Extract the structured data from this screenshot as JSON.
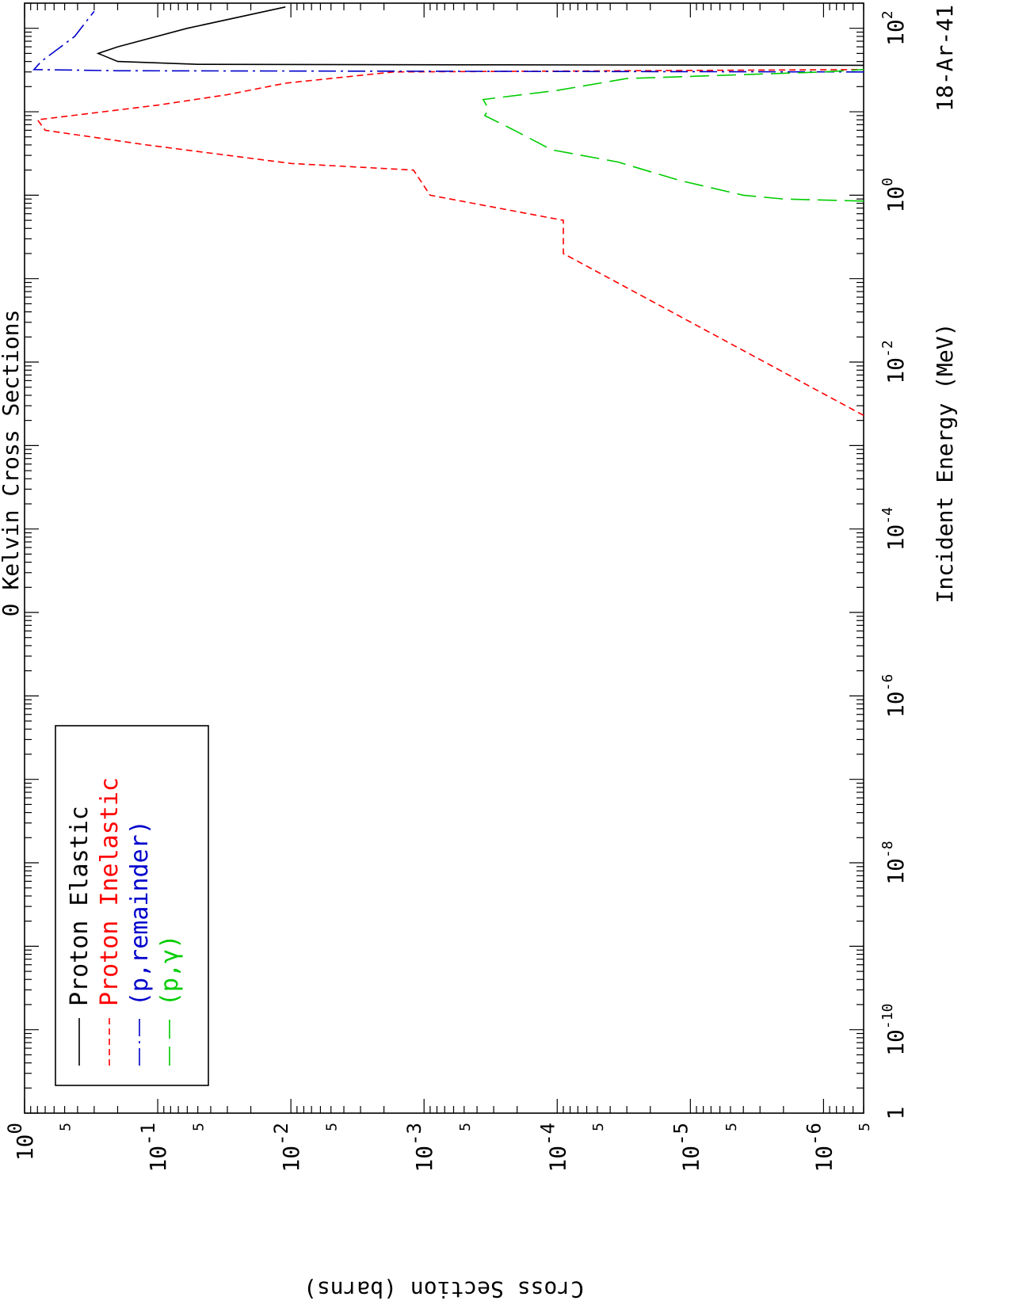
{
  "chart_data": {
    "type": "line",
    "title": "0 Kelvin Cross Sections",
    "xlabel": "Incident Energy (MeV)",
    "ylabel": "Cross Section (barns)",
    "corner_label": "18-Ar-41",
    "x_scale": "log",
    "y_scale": "log",
    "xlim": [
      1e-11,
      200
    ],
    "ylim": [
      5e-07,
      1
    ],
    "x_major_ticks": [
      {
        "label": "1",
        "sup": ""
      },
      {
        "label": "10",
        "sup": "-10"
      },
      {
        "label": "10",
        "sup": "-8"
      },
      {
        "label": "10",
        "sup": "-6"
      },
      {
        "label": "10",
        "sup": "-4"
      },
      {
        "label": "10",
        "sup": "-2"
      },
      {
        "label": "10",
        "sup": "0"
      },
      {
        "label": "10",
        "sup": "2"
      }
    ],
    "y_major_ticks": [
      {
        "label": "10",
        "sup": "0"
      },
      {
        "label": "10",
        "sup": "-1"
      },
      {
        "label": "10",
        "sup": "-2"
      },
      {
        "label": "10",
        "sup": "-3"
      },
      {
        "label": "10",
        "sup": "-4"
      },
      {
        "label": "10",
        "sup": "-5"
      },
      {
        "label": "10",
        "sup": "-6"
      }
    ],
    "y_minor_label": "5",
    "legend": {
      "placement": "lower-left"
    },
    "series": [
      {
        "name": "Proton Elastic",
        "color": "#000000",
        "dash": "solid",
        "points": [
          [
            36,
            5e-07
          ],
          [
            36.5,
            0.0005
          ],
          [
            37,
            0.05
          ],
          [
            40,
            0.2
          ],
          [
            50,
            0.28
          ],
          [
            60,
            0.2
          ],
          [
            100,
            0.06
          ],
          [
            180,
            0.011
          ]
        ]
      },
      {
        "name": "Proton Inelastic",
        "color": "#ff0000",
        "dash": "dashed",
        "points": [
          [
            0.0023,
            5e-07
          ],
          [
            0.2,
            9e-05
          ],
          [
            0.5,
            9e-05
          ],
          [
            1,
            0.0009
          ],
          [
            2,
            0.0012
          ],
          [
            2.4,
            0.01
          ],
          [
            4,
            0.12
          ],
          [
            6,
            0.7
          ],
          [
            8,
            0.8
          ],
          [
            12,
            0.1
          ],
          [
            16,
            0.03
          ],
          [
            22,
            0.011
          ],
          [
            30,
            0.0017
          ],
          [
            32,
            5e-07
          ]
        ]
      },
      {
        "name": "(p,remainder)",
        "color": "#0000cc",
        "dash": "dashdot",
        "points": [
          [
            30,
            5e-07
          ],
          [
            31,
            0.2
          ],
          [
            32,
            0.85
          ],
          [
            40,
            0.75
          ],
          [
            80,
            0.42
          ],
          [
            160,
            0.3
          ]
        ]
      },
      {
        "name": "(p,γ)",
        "color": "#00cc00",
        "dash": "longdash",
        "points": [
          [
            0.85,
            5e-07
          ],
          [
            0.9,
            2e-06
          ],
          [
            1,
            4e-06
          ],
          [
            1.5,
            1.2e-05
          ],
          [
            2.5,
            3.5e-05
          ],
          [
            3.5,
            0.00011
          ],
          [
            6,
            0.00021
          ],
          [
            9,
            0.00035
          ],
          [
            10.5,
            0.00033
          ],
          [
            12,
            0.00034
          ],
          [
            14,
            0.00036
          ],
          [
            18,
            0.0001
          ],
          [
            25,
            3e-05
          ],
          [
            30,
            1e-06
          ],
          [
            32,
            5e-07
          ]
        ]
      }
    ]
  }
}
